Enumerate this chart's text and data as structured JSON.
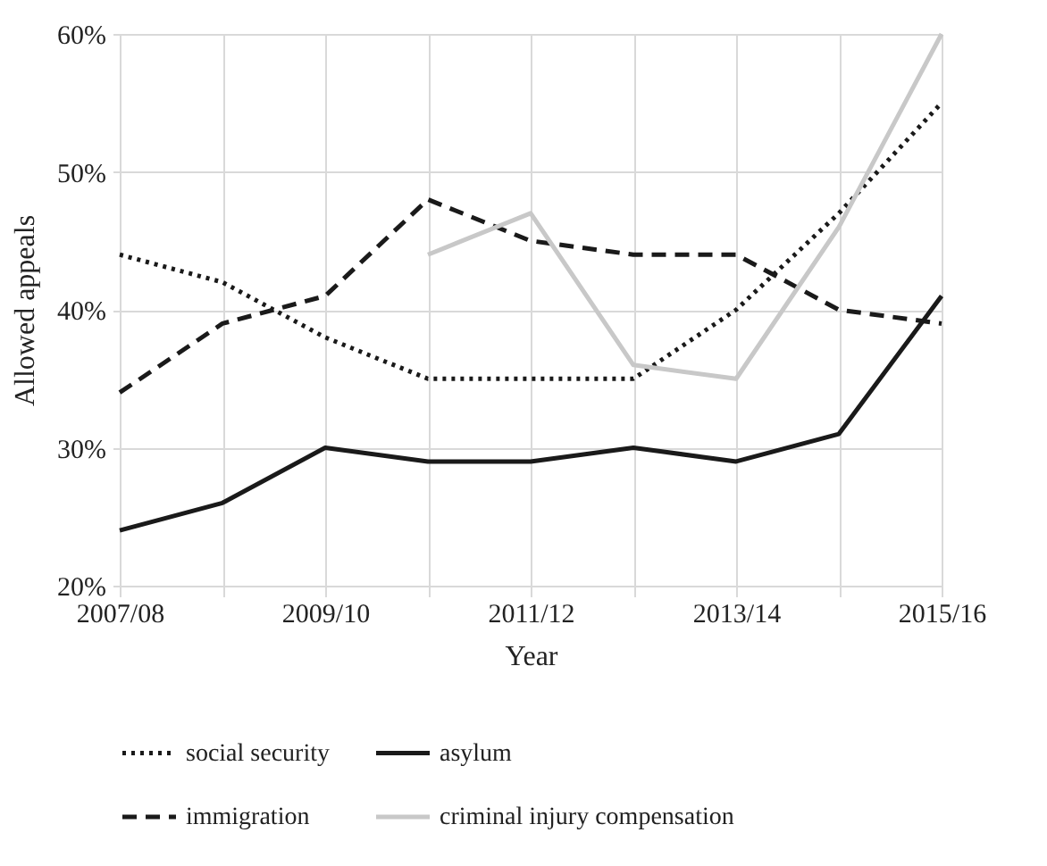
{
  "chart_data": {
    "type": "line",
    "xlabel": "Year",
    "ylabel": "Allowed appeals",
    "categories": [
      "2007/08",
      null,
      "2009/10",
      null,
      "2011/12",
      null,
      "2013/14",
      null,
      "2015/16"
    ],
    "series": [
      {
        "name": "social security",
        "color": "#1a1a1a",
        "line_style": "dotted",
        "values": [
          44,
          42,
          38,
          35,
          35,
          35,
          40,
          47,
          55
        ]
      },
      {
        "name": "asylum",
        "color": "#1a1a1a",
        "line_style": "solid",
        "values": [
          24,
          26,
          30,
          29,
          29,
          30,
          29,
          31,
          41
        ]
      },
      {
        "name": "immigration",
        "color": "#1a1a1a",
        "line_style": "dashed",
        "values": [
          34,
          39,
          41,
          48,
          45,
          44,
          44,
          40,
          39
        ]
      },
      {
        "name": "criminal injury compensation",
        "color": "#c8c8c8",
        "line_style": "solid",
        "values": [
          null,
          null,
          null,
          44,
          47,
          36,
          35,
          46,
          60
        ]
      }
    ],
    "ylim": [
      20,
      60
    ],
    "yticks": [
      {
        "value": 20,
        "label": "20%"
      },
      {
        "value": 30,
        "label": "30%"
      },
      {
        "value": 40,
        "label": "40%"
      },
      {
        "value": 50,
        "label": "50%"
      },
      {
        "value": 60,
        "label": "60%"
      }
    ],
    "grid": true,
    "legend": "bottom",
    "marker": "none"
  }
}
